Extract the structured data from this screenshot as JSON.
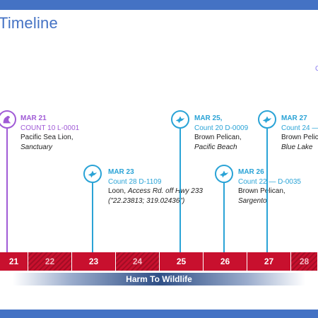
{
  "slide": {
    "title": "Timeline",
    "edge_mark": "C"
  },
  "events": [
    {
      "date": "MAR 21",
      "count": "COUNT 10 L-0001",
      "desc": "Pacific Sea Lion,",
      "place": "Sanctuary",
      "color": "#a05bd6",
      "icon": "sea-lion-icon"
    },
    {
      "date": "MAR 23",
      "count": "Count 28 D-1109",
      "desc_prefix": "Loon, ",
      "desc_italic": "Access Rd. off Hwy 233",
      "place": "(\"22.23813; 319.02436\")",
      "color": "#2aa3d6",
      "icon": "bird-icon"
    },
    {
      "date": "MAR 25,",
      "count": "Count 20 D-0009",
      "desc": "Brown Pelican,",
      "place": "Pacific Beach",
      "color": "#2aa3d6",
      "icon": "bird-icon"
    },
    {
      "date": "MAR 26",
      "count": "Count 22 — D-0035",
      "desc": "Brown Pelican,",
      "place": "Sargento",
      "color": "#2aa3d6",
      "icon": "bird-icon"
    },
    {
      "date": "MAR 27",
      "count": "Count 24 —",
      "desc": "Brown Pelic",
      "place": "Blue Lake",
      "color": "#2aa3d6",
      "icon": "bird-icon"
    }
  ],
  "axis": {
    "labels": [
      "21",
      "22",
      "23",
      "24",
      "25",
      "26",
      "27",
      "28"
    ],
    "hatched": [
      false,
      true,
      false,
      true,
      false,
      false,
      false,
      true
    ]
  },
  "band_label": "Harm To Wildlife",
  "colors": {
    "primary": "#4472c4",
    "strip": "#c8102e",
    "purple": "#a05bd6",
    "cyan": "#2aa3d6"
  }
}
